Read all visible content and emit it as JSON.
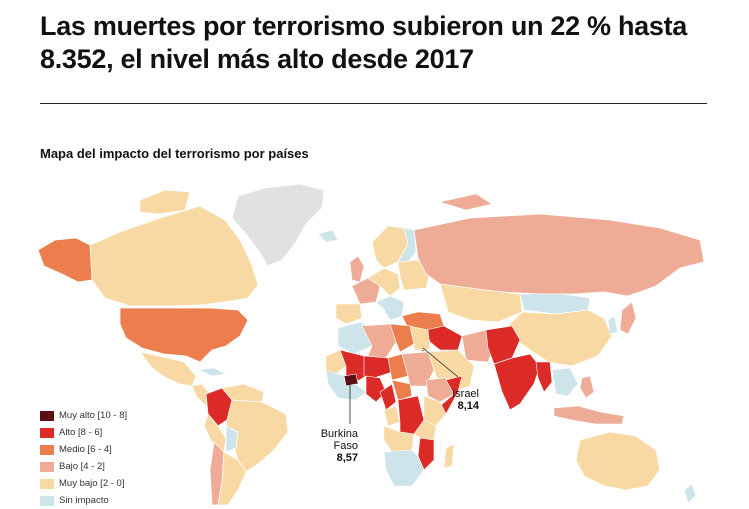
{
  "headline": "Las muertes por terrorismo subieron un 22 % hasta 8.352, el nivel más alto desde 2017",
  "map": {
    "title": "Mapa del impacto del terrorismo por países",
    "colors": {
      "very_high": "#5c0d16",
      "high": "#dc2a26",
      "medium": "#ec7d4c",
      "low": "#eeab95",
      "very_low": "#f8d9a4",
      "no_impact": "#cde4ea",
      "no_data": "#e1e1e1"
    },
    "legend": [
      {
        "label": "Muy alto [10 - 8]",
        "color": "#5c0d16"
      },
      {
        "label": "Alto [8 - 6]",
        "color": "#dc2a26"
      },
      {
        "label": "Medio [6 - 4]",
        "color": "#ec7d4c"
      },
      {
        "label": "Bajo [4 - 2]",
        "color": "#eeab95"
      },
      {
        "label": "Muy bajo [2 - 0]",
        "color": "#f8d9a4"
      },
      {
        "label": "Sin impacto",
        "color": "#cde4ea"
      }
    ],
    "callouts": [
      {
        "name_line1": "Burkina",
        "name_line2": "Faso",
        "value": "8,57"
      },
      {
        "name_line1": "Israel",
        "name_line2": "",
        "value": "8,14"
      }
    ]
  }
}
